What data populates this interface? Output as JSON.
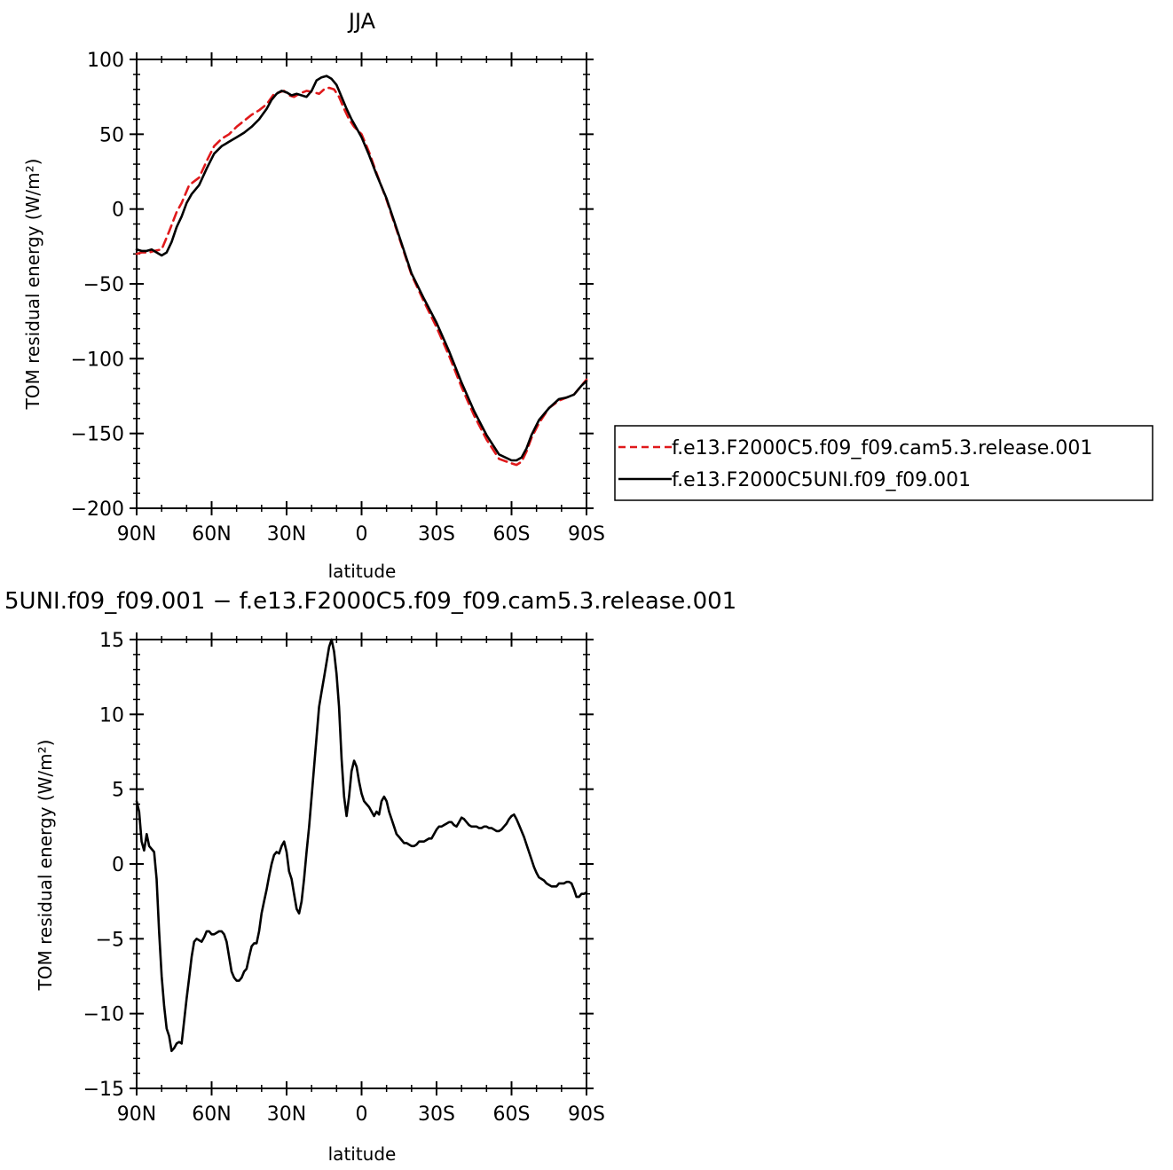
{
  "colors": {
    "red_series": "#e0191b",
    "black_series": "#000000",
    "axis": "#000000"
  },
  "chart_data": [
    {
      "type": "line",
      "title": "JJA",
      "xlabel": "latitude",
      "ylabel": "TOM residual energy (W/m²)",
      "xlim": [
        90,
        -90
      ],
      "ylim": [
        -200,
        100
      ],
      "x_tick_values": [
        90,
        60,
        30,
        0,
        -30,
        -60,
        -90
      ],
      "x_tick_labels": [
        "90N",
        "60N",
        "30N",
        "0",
        "30S",
        "60S",
        "90S"
      ],
      "y_ticks": [
        100,
        50,
        0,
        -50,
        -100,
        -150,
        -200
      ],
      "y_tick_labels": [
        "100",
        "50",
        "0",
        "−50",
        "−100",
        "−150",
        "−200"
      ],
      "legend_position": "right",
      "series": [
        {
          "name": "f.e13.F2000C5.f09_f09.cam5.3.release.001",
          "color": "#e0191b",
          "dash": "dashed",
          "x": [
            90,
            88,
            85,
            83,
            80,
            77,
            74,
            72,
            69,
            65,
            62,
            59,
            56,
            53,
            50,
            47,
            44,
            41,
            38,
            35,
            33,
            31,
            29,
            27,
            25,
            22,
            19,
            17,
            15,
            13,
            11,
            9,
            7,
            5,
            3,
            0,
            -3,
            -6,
            -10,
            -15,
            -20,
            -25,
            -30,
            -35,
            -40,
            -45,
            -50,
            -55,
            -60,
            -62,
            -64,
            -66,
            -68,
            -71,
            -75,
            -79,
            -82,
            -85,
            -88,
            -90
          ],
          "y": [
            -30,
            -29,
            -29,
            -28,
            -27,
            -15,
            -2,
            4,
            16,
            21,
            32,
            42,
            47,
            50,
            55,
            59,
            63,
            66,
            70,
            77,
            78,
            79,
            76,
            75,
            77,
            79,
            78,
            77,
            80,
            81,
            80,
            75,
            67,
            60,
            55,
            50,
            38,
            24,
            6,
            -19,
            -44,
            -62,
            -79,
            -98,
            -119,
            -138,
            -154,
            -167,
            -170,
            -171,
            -169,
            -162,
            -153,
            -143,
            -133,
            -128,
            -126,
            -124,
            -118,
            -114
          ]
        },
        {
          "name": "f.e13.F2000C5UNI.f09_f09.001",
          "color": "#000000",
          "dash": "solid",
          "x": [
            90,
            88,
            86,
            84,
            82,
            80,
            78,
            76,
            74,
            72,
            70,
            68,
            65,
            62,
            59,
            56,
            53,
            50,
            47,
            44,
            41,
            38,
            36,
            34,
            32,
            30,
            28,
            26,
            24,
            22,
            20,
            18,
            16,
            14,
            12,
            10,
            8,
            6,
            4,
            2,
            0,
            -3,
            -6,
            -10,
            -15,
            -20,
            -25,
            -30,
            -35,
            -40,
            -45,
            -50,
            -55,
            -60,
            -62,
            -64,
            -66,
            -68,
            -71,
            -75,
            -79,
            -82,
            -85,
            -88,
            -90
          ],
          "y": [
            -27,
            -28,
            -28,
            -27,
            -29,
            -31,
            -29,
            -22,
            -12,
            -5,
            4,
            10,
            16,
            27,
            37,
            42,
            45,
            48,
            51,
            55,
            60,
            67,
            73,
            77,
            79,
            78,
            76,
            77,
            76,
            75,
            79,
            86,
            88,
            89,
            87,
            83,
            75,
            67,
            60,
            54,
            48,
            36,
            23,
            7,
            -18,
            -43,
            -60,
            -76,
            -95,
            -116,
            -135,
            -151,
            -164,
            -168,
            -168,
            -166,
            -160,
            -151,
            -141,
            -133,
            -127,
            -126,
            -124,
            -118,
            -115
          ]
        }
      ]
    },
    {
      "type": "line",
      "title": "5UNI.f09_f09.001 − f.e13.F2000C5.f09_f09.cam5.3.release.001",
      "xlabel": "latitude",
      "ylabel": "TOM residual energy (W/m²)",
      "xlim": [
        90,
        -90
      ],
      "ylim": [
        -15,
        15
      ],
      "x_tick_values": [
        90,
        60,
        30,
        0,
        -30,
        -60,
        -90
      ],
      "x_tick_labels": [
        "90N",
        "60N",
        "30N",
        "0",
        "30S",
        "60S",
        "90S"
      ],
      "y_ticks": [
        15,
        10,
        5,
        0,
        -5,
        -10,
        -15
      ],
      "y_tick_labels": [
        "15",
        "10",
        "5",
        "0",
        "−5",
        "−10",
        "−15"
      ],
      "series": [
        {
          "color": "#000000",
          "dash": "solid",
          "x": [
            90,
            89,
            88,
            87,
            86,
            85,
            84,
            83,
            82,
            81,
            80,
            79,
            78,
            77,
            76,
            75,
            74,
            73,
            72,
            71,
            70,
            69,
            68,
            67,
            66,
            65,
            64,
            63,
            62,
            61,
            60,
            59,
            58,
            57,
            56,
            55,
            54,
            53,
            52,
            51,
            50,
            49,
            48,
            47,
            46,
            45,
            44,
            43,
            42,
            41,
            40,
            39,
            38,
            37,
            36,
            35,
            34,
            33,
            32,
            31,
            30,
            29,
            28,
            27,
            26,
            25,
            24,
            23,
            22,
            21,
            20,
            19,
            18,
            17,
            16,
            15,
            14,
            13,
            12,
            11,
            10,
            9,
            8,
            7,
            6,
            5,
            4,
            3,
            2,
            1,
            0,
            -1,
            -2,
            -3,
            -4,
            -5,
            -6,
            -7,
            -8,
            -9,
            -10,
            -11,
            -12,
            -13,
            -14,
            -15,
            -16,
            -17,
            -18,
            -19,
            -20,
            -21,
            -22,
            -23,
            -24,
            -25,
            -26,
            -27,
            -28,
            -29,
            -30,
            -31,
            -32,
            -33,
            -34,
            -35,
            -36,
            -37,
            -38,
            -39,
            -40,
            -41,
            -42,
            -43,
            -44,
            -45,
            -46,
            -47,
            -48,
            -49,
            -50,
            -51,
            -52,
            -53,
            -54,
            -55,
            -56,
            -57,
            -58,
            -59,
            -60,
            -61,
            -62,
            -63,
            -64,
            -65,
            -66,
            -67,
            -68,
            -69,
            -70,
            -71,
            -72,
            -73,
            -74,
            -75,
            -76,
            -77,
            -78,
            -79,
            -80,
            -81,
            -82,
            -83,
            -84,
            -85,
            -86,
            -87,
            -88,
            -89,
            -90
          ],
          "y": [
            4.2,
            3.5,
            1.5,
            0.9,
            2.0,
            1.2,
            1.0,
            0.8,
            -1.0,
            -4.5,
            -7.5,
            -9.5,
            -11.0,
            -11.5,
            -12.5,
            -12.3,
            -12.0,
            -11.9,
            -12.0,
            -10.5,
            -9.0,
            -7.6,
            -6.2,
            -5.2,
            -5.0,
            -5.1,
            -5.2,
            -4.9,
            -4.5,
            -4.5,
            -4.7,
            -4.7,
            -4.6,
            -4.5,
            -4.5,
            -4.7,
            -5.2,
            -6.2,
            -7.2,
            -7.6,
            -7.8,
            -7.8,
            -7.6,
            -7.2,
            -7.0,
            -6.2,
            -5.5,
            -5.3,
            -5.3,
            -4.5,
            -3.3,
            -2.5,
            -1.7,
            -0.8,
            0.0,
            0.6,
            0.8,
            0.7,
            1.2,
            1.5,
            0.8,
            -0.5,
            -1.0,
            -2.0,
            -3.0,
            -3.3,
            -2.5,
            -1.0,
            0.8,
            2.5,
            4.5,
            6.5,
            8.5,
            10.5,
            11.5,
            12.5,
            13.5,
            14.5,
            15.0,
            14.2,
            12.7,
            10.5,
            7.0,
            4.5,
            3.2,
            4.5,
            6.2,
            6.9,
            6.5,
            5.5,
            4.7,
            4.2,
            4.0,
            3.8,
            3.5,
            3.2,
            3.5,
            3.3,
            4.2,
            4.5,
            4.2,
            3.5,
            3.0,
            2.5,
            2.0,
            1.8,
            1.6,
            1.4,
            1.4,
            1.3,
            1.2,
            1.2,
            1.3,
            1.5,
            1.5,
            1.5,
            1.6,
            1.7,
            1.7,
            2.0,
            2.3,
            2.5,
            2.5,
            2.6,
            2.7,
            2.8,
            2.8,
            2.6,
            2.5,
            2.8,
            3.1,
            3.0,
            2.8,
            2.6,
            2.5,
            2.5,
            2.5,
            2.4,
            2.4,
            2.5,
            2.5,
            2.4,
            2.4,
            2.3,
            2.2,
            2.2,
            2.3,
            2.5,
            2.7,
            3.0,
            3.2,
            3.3,
            3.0,
            2.6,
            2.2,
            1.8,
            1.3,
            0.8,
            0.3,
            -0.2,
            -0.6,
            -0.9,
            -1.0,
            -1.1,
            -1.3,
            -1.4,
            -1.5,
            -1.5,
            -1.5,
            -1.3,
            -1.3,
            -1.3,
            -1.2,
            -1.2,
            -1.3,
            -1.7,
            -2.2,
            -2.2,
            -2.0,
            -2.0,
            -1.9
          ]
        }
      ]
    }
  ]
}
